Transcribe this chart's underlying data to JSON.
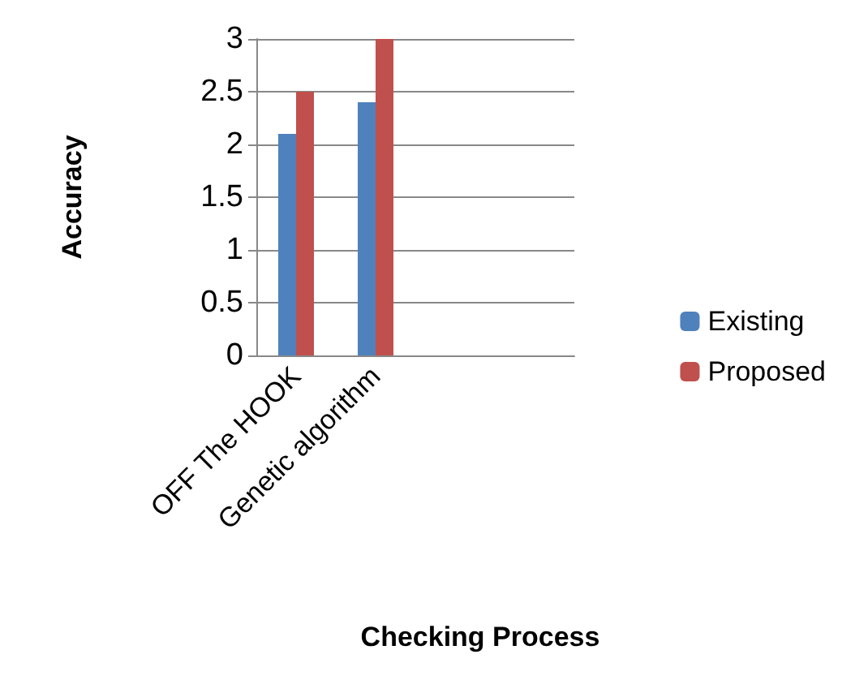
{
  "chart_data": {
    "type": "bar",
    "xlabel": "Checking Process",
    "ylabel": "Accuracy",
    "categories": [
      "OFF The HOOK",
      "Genetic algorithm",
      null,
      null
    ],
    "series": [
      {
        "name": "Existing",
        "color": "#4f81bd",
        "values": [
          2.1,
          2.4,
          null,
          null
        ]
      },
      {
        "name": "Proposed",
        "color": "#c0504d",
        "values": [
          2.5,
          3.0,
          null,
          null
        ]
      }
    ],
    "ylim": [
      0,
      3
    ],
    "yticks": [
      0,
      0.5,
      1,
      1.5,
      2,
      2.5,
      3
    ],
    "grid": "y",
    "legend": "right"
  }
}
